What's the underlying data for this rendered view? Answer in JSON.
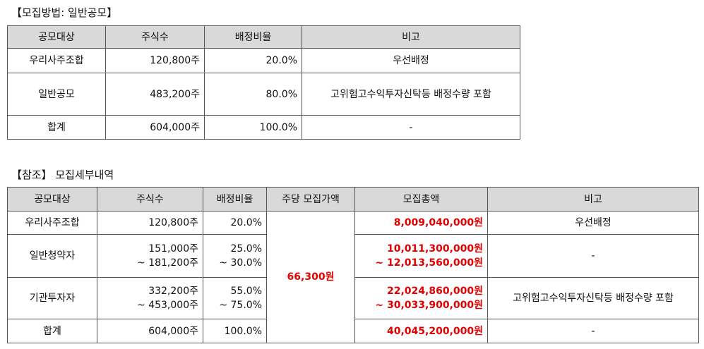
{
  "section1": {
    "title": "【모집방법: 일반공모】",
    "headers": [
      "공모대상",
      "주식수",
      "배정비율",
      "비고"
    ],
    "rows": [
      {
        "target": "우리사주조합",
        "shares": "120,800주",
        "ratio": "20.0%",
        "note": "우선배정"
      },
      {
        "target": "일반공모",
        "shares": "483,200주",
        "ratio": "80.0%",
        "note": "고위험고수익투자신탁등 배정수량 포함"
      },
      {
        "target": "합계",
        "shares": "604,000주",
        "ratio": "100.0%",
        "note": "-"
      }
    ]
  },
  "section2": {
    "title": "【참조】 모집세부내역",
    "headers": [
      "공모대상",
      "주식수",
      "배정비율",
      "주당 모집가액",
      "모집총액",
      "비고"
    ],
    "price": "66,300원",
    "rows": [
      {
        "target": "우리사주조합",
        "shares": [
          "120,800주"
        ],
        "ratio": [
          "20.0%"
        ],
        "total": [
          "8,009,040,000원"
        ],
        "note": "우선배정"
      },
      {
        "target": "일반청약자",
        "shares": [
          "151,000주",
          "~ 181,200주"
        ],
        "ratio": [
          "25.0%",
          "~ 30.0%"
        ],
        "total": [
          "10,011,300,000원",
          "~ 12,013,560,000원"
        ],
        "note": "-"
      },
      {
        "target": "기관투자자",
        "shares": [
          "332,200주",
          "~ 453,000주"
        ],
        "ratio": [
          "55.0%",
          "~ 75.0%"
        ],
        "total": [
          "22,024,860,000원",
          "~ 30,033,900,000원"
        ],
        "note": "고위험고수익투자신탁등 배정수량 포함"
      },
      {
        "target": "합계",
        "shares": [
          "604,000주"
        ],
        "ratio": [
          "100.0%"
        ],
        "total": [
          "40,045,200,000원"
        ],
        "note": "-"
      }
    ],
    "colors": {
      "total_text": "#e00000",
      "header_bg": "#d9d9d9"
    }
  }
}
